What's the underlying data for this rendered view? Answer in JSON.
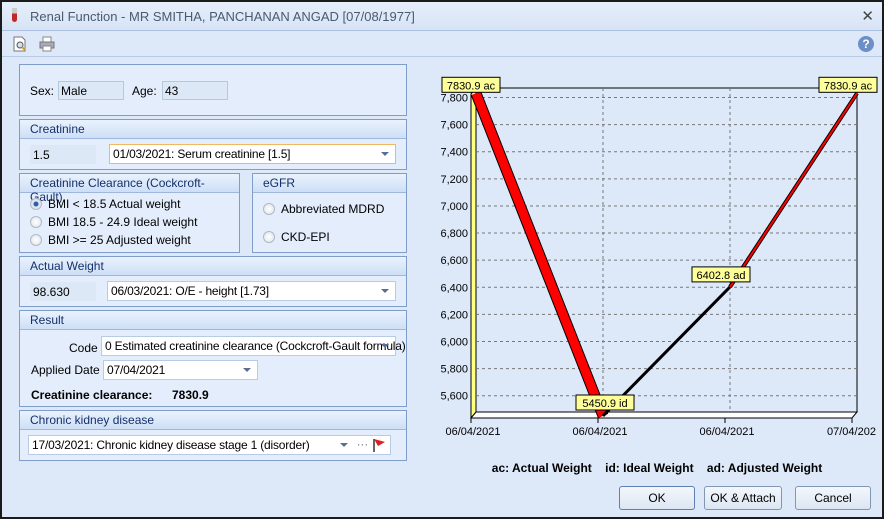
{
  "window": {
    "title": "Renal Function - MR SMITHA, PANCHANAN ANGAD [07/08/1977]",
    "close": "✕",
    "help": "?"
  },
  "patient": {
    "sex_label": "Sex:",
    "sex": "Male",
    "age_label": "Age:",
    "age": "43"
  },
  "creatinine": {
    "header": "Creatinine",
    "value": "1.5",
    "selection": "01/03/2021: Serum creatinine [1.5]"
  },
  "clearance": {
    "header": "Creatinine Clearance (Cockcroft-Gault)",
    "options": [
      {
        "label": "BMI < 18.5 Actual weight",
        "selected": true
      },
      {
        "label": "BMI 18.5 - 24.9 Ideal weight",
        "selected": false
      },
      {
        "label": "BMI >= 25 Adjusted weight",
        "selected": false
      }
    ]
  },
  "egfr": {
    "header": "eGFR",
    "options": [
      {
        "label": "Abbreviated MDRD",
        "selected": false
      },
      {
        "label": "CKD-EPI",
        "selected": false
      }
    ]
  },
  "weight": {
    "header": "Actual Weight",
    "value": "98.630",
    "selection": "06/03/2021: O/E - height [1.73]"
  },
  "result": {
    "header": "Result",
    "code_label": "Code",
    "code": "0 Estimated creatinine clearance (Cockcroft-Gault formula)",
    "date_label": "Applied Date",
    "date": "07/04/2021",
    "clearance_label": "Creatinine clearance:",
    "clearance_value": "7830.9"
  },
  "ckd": {
    "header": "Chronic kidney disease",
    "selection": "17/03/2021: Chronic kidney disease stage 1 (disorder)",
    "more": "···"
  },
  "buttons": {
    "ok": "OK",
    "ok_attach": "OK & Attach",
    "cancel": "Cancel"
  },
  "colors": {
    "line": "#ff0000",
    "label_bg": "#ffff99",
    "wall": "#ffff80"
  },
  "chart_data": {
    "type": "line",
    "x": [
      "06/04/2021",
      "06/04/2021",
      "06/04/2021",
      "07/04/202"
    ],
    "values": [
      7830.9,
      5450.9,
      6402.8,
      7830.9
    ],
    "point_labels": [
      "7830.9 ac",
      "5450.9 id",
      "6402.8 ad",
      "7830.9 ac"
    ],
    "ylim": [
      5480,
      7870
    ],
    "yticks": [
      5600,
      5800,
      6000,
      6200,
      6400,
      6600,
      6800,
      7000,
      7200,
      7400,
      7600,
      7800
    ],
    "ytick_labels": [
      "5,600",
      "5,800",
      "6,000",
      "6,200",
      "6,400",
      "6,600",
      "6,800",
      "7,000",
      "7,200",
      "7,400",
      "7,600",
      "7,800"
    ],
    "grid": true,
    "legend": "ac: Actual Weight    id: Ideal Weight    ad: Adjusted Weight"
  }
}
